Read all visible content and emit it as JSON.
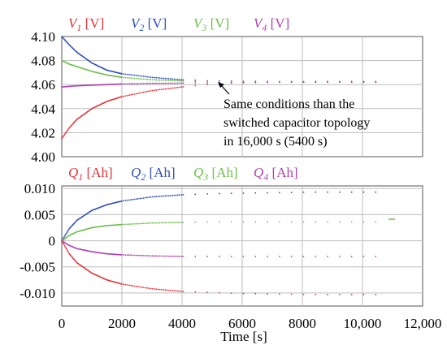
{
  "chart_data": [
    {
      "type": "scatter",
      "legend_placement": "top",
      "series": [
        {
          "name_sym": "V",
          "name_sub": "1",
          "name_unit": "[V]",
          "color": "#e8323a"
        },
        {
          "name_sym": "V",
          "name_sub": "2",
          "name_unit": "[V]",
          "color": "#3050b8"
        },
        {
          "name_sym": "V",
          "name_sub": "3",
          "name_unit": "[V]",
          "color": "#6cc04a"
        },
        {
          "name_sym": "V",
          "name_sub": "4",
          "name_unit": "[V]",
          "color": "#b040b0"
        }
      ],
      "curves": [
        {
          "x": [
            0,
            250,
            500,
            1000,
            1500,
            2000,
            3000,
            4000,
            5000,
            6000,
            7000,
            8500,
            10000,
            10500
          ],
          "y": [
            4.015,
            4.024,
            4.031,
            4.04,
            4.046,
            4.05,
            4.055,
            4.058,
            4.0605,
            4.0615,
            4.062,
            4.0625,
            4.0625,
            4.0625
          ]
        },
        {
          "x": [
            0,
            250,
            500,
            1000,
            1500,
            2000,
            3000,
            4000,
            5000,
            6000,
            7000,
            8500,
            10000,
            10500
          ],
          "y": [
            4.1,
            4.093,
            4.087,
            4.078,
            4.072,
            4.069,
            4.066,
            4.064,
            4.063,
            4.0628,
            4.0625,
            4.0625,
            4.0625,
            4.0625
          ]
        },
        {
          "x": [
            0,
            250,
            500,
            1000,
            1500,
            2000,
            3000,
            4000,
            5000,
            6000,
            7000,
            8500,
            10000,
            10500
          ],
          "y": [
            4.08,
            4.077,
            4.075,
            4.071,
            4.068,
            4.066,
            4.064,
            4.063,
            4.0625,
            4.0622,
            4.062,
            4.062,
            4.062,
            4.062
          ]
        },
        {
          "x": [
            0,
            250,
            500,
            1000,
            1500,
            2000,
            3000,
            4000,
            5000,
            6000,
            7000,
            8500,
            10000,
            10500
          ],
          "y": [
            4.058,
            4.0585,
            4.059,
            4.0595,
            4.06,
            4.0605,
            4.061,
            4.0612,
            4.0615,
            4.0618,
            4.062,
            4.062,
            4.062,
            4.062
          ]
        }
      ],
      "ylim": [
        4.0,
        4.1
      ],
      "yticks": [
        "4.00",
        "4.02",
        "4.04",
        "4.06",
        "4.08",
        "4.10"
      ],
      "xlim": [
        0,
        12000
      ],
      "grid": true,
      "annotation": {
        "lines": [
          "Same conditions than the",
          "switched capacitor topology",
          "in 16,000 s (5400 s)"
        ],
        "arrow_to": [
          4900,
          4062
        ]
      }
    },
    {
      "type": "scatter",
      "legend_placement": "top",
      "series": [
        {
          "name_sym": "Q",
          "name_sub": "1",
          "name_unit": "[Ah]",
          "color": "#e8323a"
        },
        {
          "name_sym": "Q",
          "name_sub": "2",
          "name_unit": "[Ah]",
          "color": "#3050b8"
        },
        {
          "name_sym": "Q",
          "name_sub": "3",
          "name_unit": "[Ah]",
          "color": "#6cc04a"
        },
        {
          "name_sym": "Q",
          "name_sub": "4",
          "name_unit": "[Ah]",
          "color": "#b040b0"
        }
      ],
      "curves": [
        {
          "x": [
            0,
            250,
            500,
            1000,
            1500,
            2000,
            3000,
            4000,
            5000,
            6000,
            7000,
            8500,
            10000,
            10500
          ],
          "y": [
            0,
            -0.0025,
            -0.0042,
            -0.0062,
            -0.0075,
            -0.0083,
            -0.0092,
            -0.0097,
            -0.0099,
            -0.0101,
            -0.0102,
            -0.0103,
            -0.0103,
            -0.0103
          ]
        },
        {
          "x": [
            0,
            250,
            500,
            1000,
            1500,
            2000,
            3000,
            4000,
            5000,
            6000,
            7000,
            8500,
            10000,
            10500
          ],
          "y": [
            0,
            0.0023,
            0.0039,
            0.0058,
            0.0069,
            0.0076,
            0.0084,
            0.0088,
            0.009,
            0.0091,
            0.0092,
            0.0093,
            0.0093,
            0.0093
          ]
        },
        {
          "x": [
            0,
            250,
            500,
            1000,
            1500,
            2000,
            3000,
            4000,
            5000,
            6000,
            7000,
            8500,
            10000,
            10500
          ],
          "y": [
            0,
            0.001,
            0.0017,
            0.0025,
            0.0029,
            0.0031,
            0.0034,
            0.0035,
            0.0036,
            0.0036,
            0.0036,
            0.0036,
            0.0036,
            0.0036
          ]
        },
        {
          "x": [
            0,
            250,
            500,
            1000,
            1500,
            2000,
            3000,
            4000,
            5000,
            6000,
            7000,
            8500,
            10000,
            10500
          ],
          "y": [
            0,
            -0.0009,
            -0.0015,
            -0.0021,
            -0.0025,
            -0.0027,
            -0.0029,
            -0.003,
            -0.003,
            -0.003,
            -0.003,
            -0.003,
            -0.003,
            -0.003
          ]
        }
      ],
      "ylim": [
        -0.0125,
        0.0105
      ],
      "yticks": [
        "0.010",
        "0.005",
        "0",
        "-0.005",
        "-0.010"
      ],
      "ytick_values": [
        0.01,
        0.005,
        0,
        -0.005,
        -0.01
      ],
      "xlim": [
        0,
        12000
      ],
      "xticks": [
        "0",
        "2000",
        "4000",
        "6000",
        "8000",
        "10,000",
        "12,000"
      ],
      "xtick_values": [
        0,
        2000,
        4000,
        6000,
        8000,
        10000,
        12000
      ],
      "xlabel": "Time [s]",
      "grid": true
    }
  ]
}
